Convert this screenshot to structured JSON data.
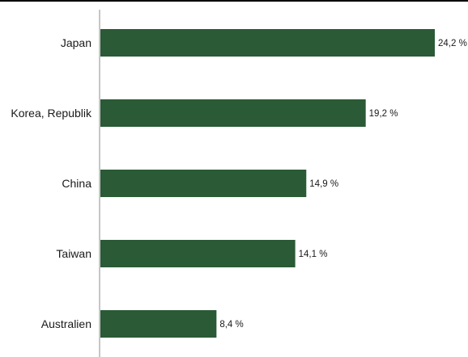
{
  "chart_data": {
    "type": "bar",
    "orientation": "horizontal",
    "categories": [
      "Japan",
      "Korea, Republik",
      "China",
      "Taiwan",
      "Australien"
    ],
    "values": [
      24.2,
      19.2,
      14.9,
      14.1,
      8.4
    ],
    "value_labels": [
      "24,2 %",
      "19,2 %",
      "14,9 %",
      "14,1 %",
      "8,4 %"
    ],
    "unit": "%",
    "xlim": [
      0,
      24.2
    ],
    "bar_color": "#2a5a36",
    "grid": false,
    "legend": "none"
  }
}
